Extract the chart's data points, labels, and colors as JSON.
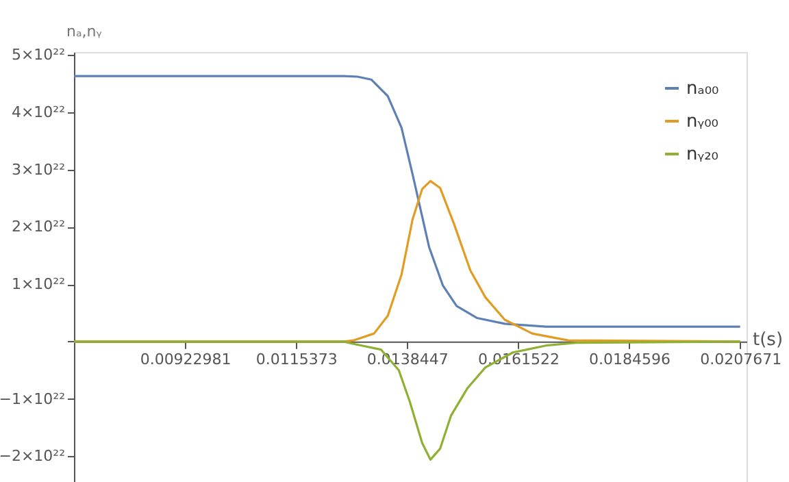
{
  "chart_data": {
    "type": "line",
    "xlabel": "t(s)",
    "ylabel": "nₐ,nᵧ",
    "xlim": [
      0.0069224,
      0.0209
    ],
    "ylim": [
      -2.45e+22,
      5.05e+22
    ],
    "xticks": [
      0.00922981,
      0.0115373,
      0.0138447,
      0.0161522,
      0.0184596,
      0.0207671
    ],
    "yticks": [
      {
        "value": -2e+22,
        "label": "−2×10²²"
      },
      {
        "value": -1e+22,
        "label": "−1×10²²"
      },
      {
        "value": 0,
        "label": null
      },
      {
        "value": 1e+22,
        "label": "1×10²²"
      },
      {
        "value": 2e+22,
        "label": "2×10²²"
      },
      {
        "value": 3e+22,
        "label": "3×10²²"
      },
      {
        "value": 4e+22,
        "label": "4×10²²"
      },
      {
        "value": 5e+22,
        "label": "5×10²²"
      }
    ],
    "grid": false,
    "legend": "top right",
    "marker": "none",
    "line_style": "solid",
    "series": [
      {
        "name": "nₐ₀₀",
        "color": "#5e81b5",
        "x": [
          0.0069224,
          0.01253,
          0.012815,
          0.013101,
          0.013444,
          0.01373,
          0.013959,
          0.014302,
          0.014588,
          0.014874,
          0.015303,
          0.015875,
          0.016732,
          0.0207671
        ],
        "values": [
          4.63e+22,
          4.63e+22,
          4.62e+22,
          4.57e+22,
          4.28e+22,
          3.73e+22,
          2.92e+22,
          1.65e+22,
          9.8e+21,
          6.2e+21,
          4.1e+21,
          3.1e+21,
          2.6e+21,
          2.6e+21
        ]
      },
      {
        "name": "nᵧ₀₀",
        "color": "#e19c24",
        "x": [
          0.0069224,
          0.01253,
          0.01273,
          0.013159,
          0.013444,
          0.01373,
          0.013959,
          0.014159,
          0.014331,
          0.014531,
          0.014817,
          0.01516,
          0.015474,
          0.015875,
          0.016446,
          0.01719,
          0.0207671
        ],
        "values": [
          0,
          0,
          2e+20,
          1.4e+21,
          4.5e+21,
          1.17e+22,
          2.13e+22,
          2.66e+22,
          2.8e+22,
          2.68e+22,
          2.06e+22,
          1.24e+22,
          7.7e+21,
          3.8e+21,
          1.4e+21,
          2e+20,
          0
        ]
      },
      {
        "name": "nᵧ₂₀",
        "color": "#8fb032",
        "x": [
          0.0069224,
          0.01253,
          0.01273,
          0.013302,
          0.013673,
          0.013902,
          0.014159,
          0.014331,
          0.014531,
          0.01476,
          0.015103,
          0.015474,
          0.016046,
          0.016732,
          0.01739,
          0.0207671
        ],
        "values": [
          0,
          0,
          -4e+20,
          -1.4e+21,
          -5e+21,
          -1.05e+22,
          -1.77e+22,
          -2.06e+22,
          -1.87e+22,
          -1.29e+22,
          -8.1e+21,
          -4.5e+21,
          -1.9e+21,
          -7e+20,
          -2e+20,
          0
        ]
      }
    ]
  }
}
